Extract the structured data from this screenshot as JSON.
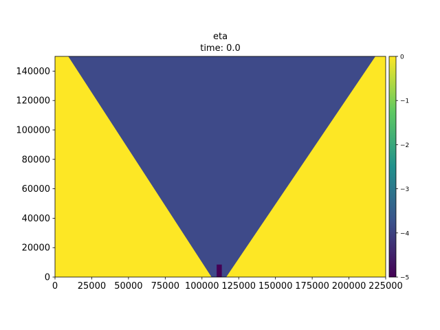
{
  "chart_data": {
    "type": "heatmap",
    "title": "eta",
    "subtitle": "time: 0.0",
    "xlabel": "",
    "ylabel": "",
    "xlim": [
      0,
      225000
    ],
    "ylim": [
      0,
      150000
    ],
    "x_ticks": [
      0,
      25000,
      50000,
      75000,
      100000,
      125000,
      150000,
      175000,
      200000,
      225000
    ],
    "y_ticks": [
      0,
      20000,
      40000,
      60000,
      80000,
      100000,
      120000,
      140000
    ],
    "x_tick_labels": [
      "0",
      "25000",
      "50000",
      "75000",
      "100000",
      "125000",
      "150000",
      "175000",
      "200000",
      "225000"
    ],
    "y_tick_labels": [
      "0",
      "20000",
      "40000",
      "60000",
      "80000",
      "100000",
      "120000",
      "140000"
    ],
    "regions": [
      {
        "name": "background",
        "value": 0,
        "color": "#fde725"
      },
      {
        "name": "v-shaped trough",
        "value": -4,
        "color": "#3e4a89",
        "polygon": [
          [
            106500,
            0
          ],
          [
            116500,
            0
          ],
          [
            218000,
            150000
          ],
          [
            9000,
            150000
          ]
        ]
      },
      {
        "name": "source block",
        "value": -5,
        "color": "#440154",
        "polygon": [
          [
            110000,
            0
          ],
          [
            113500,
            0
          ],
          [
            113500,
            8500
          ],
          [
            110000,
            8500
          ]
        ]
      }
    ],
    "colorbar": {
      "min": -5,
      "max": 0,
      "ticks": [
        0,
        -1,
        -2,
        -3,
        -4,
        -5
      ],
      "tick_labels": [
        "0",
        "−1",
        "−2",
        "−3",
        "−4",
        "−5"
      ],
      "colormap": "viridis",
      "colors": [
        "#440154",
        "#3b528b",
        "#21918c",
        "#5ec962",
        "#fde725"
      ]
    },
    "grid": false,
    "legend": "none"
  }
}
